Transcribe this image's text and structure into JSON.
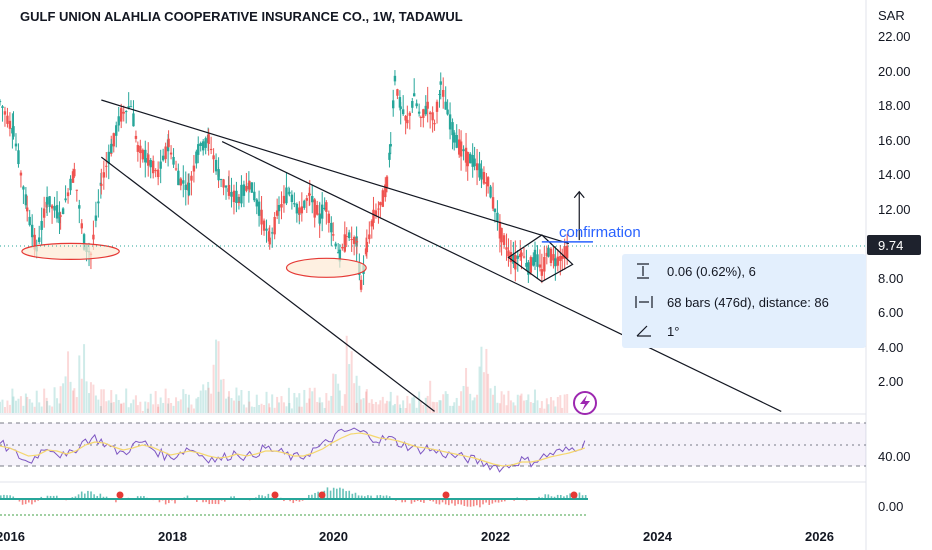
{
  "header": {
    "title": "GULF UNION ALAHLIA COOPERATIVE INSURANCE CO., 1W, TADAWUL",
    "currency": "SAR"
  },
  "price_axis": {
    "ticks": [
      "22.00",
      "20.00",
      "18.00",
      "16.00",
      "14.00",
      "12.00",
      "8.00",
      "6.00",
      "4.00",
      "2.00"
    ],
    "last_price": "9.74"
  },
  "rsi_axis": {
    "ticks": [
      "40.00"
    ]
  },
  "macd_axis": {
    "ticks": [
      "0.00"
    ]
  },
  "time_axis": {
    "ticks": [
      "2016",
      "2018",
      "2020",
      "2022",
      "2024",
      "2026"
    ]
  },
  "annotation": {
    "confirmation": "confirmation"
  },
  "measure": {
    "price_range": "0.06 (0.62%), 6",
    "bars_range": "68 bars (476d), distance: 86",
    "angle": "1°"
  },
  "colors": {
    "up": "#26a69a",
    "down": "#ef5350",
    "rsi": "#7e57c2",
    "rsi_ma": "#f5d76e",
    "accent": "#2962ff",
    "last_price_bg": "#1e222d"
  },
  "chart_data": [
    {
      "type": "candlestick",
      "title": "",
      "ylim": [
        0,
        23
      ],
      "x_range": [
        "2015-10-01",
        "2026-10-01"
      ],
      "close_series": [
        [
          "2015-10-01",
          18.2
        ],
        [
          "2015-12-01",
          16.5
        ],
        [
          "2016-02-01",
          12.0
        ],
        [
          "2016-03-15",
          9.6
        ],
        [
          "2016-05-01",
          12.5
        ],
        [
          "2016-07-01",
          11.5
        ],
        [
          "2016-09-01",
          14.2
        ],
        [
          "2016-10-15",
          10.0
        ],
        [
          "2016-11-15",
          9.4
        ],
        [
          "2017-01-01",
          13.5
        ],
        [
          "2017-02-15",
          15.5
        ],
        [
          "2017-04-01",
          17.5
        ],
        [
          "2017-05-15",
          18.0
        ],
        [
          "2017-06-15",
          15.5
        ],
        [
          "2017-08-01",
          14.8
        ],
        [
          "2017-09-15",
          14.0
        ],
        [
          "2017-11-01",
          15.8
        ],
        [
          "2017-12-15",
          13.8
        ],
        [
          "2018-02-01",
          13.2
        ],
        [
          "2018-03-15",
          15.5
        ],
        [
          "2018-05-01",
          16.0
        ],
        [
          "2018-06-15",
          14.0
        ],
        [
          "2018-08-01",
          13.0
        ],
        [
          "2018-09-15",
          12.5
        ],
        [
          "2018-11-01",
          13.5
        ],
        [
          "2018-12-15",
          12.0
        ],
        [
          "2019-02-01",
          10.2
        ],
        [
          "2019-03-15",
          12.0
        ],
        [
          "2019-05-01",
          13.0
        ],
        [
          "2019-06-15",
          11.8
        ],
        [
          "2019-08-01",
          12.8
        ],
        [
          "2019-09-15",
          11.5
        ],
        [
          "2019-10-15",
          12.2
        ],
        [
          "2019-11-15",
          10.5
        ],
        [
          "2019-12-15",
          9.2
        ],
        [
          "2020-01-15",
          10.5
        ],
        [
          "2020-03-01",
          10.0
        ],
        [
          "2020-03-20",
          7.6
        ],
        [
          "2020-04-15",
          9.8
        ],
        [
          "2020-05-15",
          11.6
        ],
        [
          "2020-06-15",
          12.2
        ],
        [
          "2020-07-15",
          13.5
        ],
        [
          "2020-08-01",
          15.8
        ],
        [
          "2020-08-20",
          19.6
        ],
        [
          "2020-09-15",
          17.8
        ],
        [
          "2020-10-15",
          17.0
        ],
        [
          "2020-11-15",
          18.5
        ],
        [
          "2020-12-15",
          17.2
        ],
        [
          "2021-01-15",
          18.0
        ],
        [
          "2021-02-15",
          17.0
        ],
        [
          "2021-03-15",
          19.2
        ],
        [
          "2021-04-15",
          17.5
        ],
        [
          "2021-05-15",
          16.2
        ],
        [
          "2021-06-15",
          15.5
        ],
        [
          "2021-07-15",
          15.0
        ],
        [
          "2021-08-15",
          14.6
        ],
        [
          "2021-09-15",
          14.0
        ],
        [
          "2021-10-15",
          13.5
        ],
        [
          "2021-11-15",
          12.0
        ],
        [
          "2021-12-15",
          10.5
        ],
        [
          "2022-01-15",
          9.5
        ],
        [
          "2022-02-15",
          9.0
        ],
        [
          "2022-03-15",
          9.5
        ],
        [
          "2022-04-15",
          8.6
        ],
        [
          "2022-05-15",
          9.2
        ],
        [
          "2022-06-15",
          8.4
        ],
        [
          "2022-07-15",
          9.6
        ],
        [
          "2022-08-15",
          9.0
        ],
        [
          "2022-09-15",
          9.3
        ],
        [
          "2022-10-15",
          9.74
        ]
      ],
      "lines": [
        {
          "from": [
            "2017-01-01",
            18.3
          ],
          "to": [
            "2022-10-15",
            10.0
          ]
        },
        {
          "from": [
            "2017-01-01",
            15.0
          ],
          "to": [
            "2021-02-15",
            0.3
          ]
        },
        {
          "from": [
            "2018-07-01",
            15.9
          ],
          "to": [
            "2025-06-01",
            0.3
          ]
        },
        {
          "from": [
            "2022-01-15",
            9.74
          ],
          "to": [
            "2022-10-15",
            9.74
          ]
        }
      ],
      "ellipses": [
        {
          "center": [
            "2016-08-15",
            9.55
          ],
          "rx_days": 220,
          "ry": 0.45
        },
        {
          "center": [
            "2019-10-15",
            8.6
          ],
          "rx_days": 180,
          "ry": 0.55
        }
      ],
      "diamond": [
        [
          "2022-01-15",
          9.2
        ],
        [
          "2022-06-15",
          10.5
        ],
        [
          "2022-11-01",
          8.8
        ],
        [
          "2022-06-15",
          7.8
        ]
      ],
      "confirmation_line": {
        "from": [
          "2022-06-15",
          10.1
        ],
        "to": [
          "2023-02-01",
          10.1
        ]
      },
      "arrow": {
        "from": [
          "2022-12-01",
          10.2
        ],
        "to": [
          "2022-12-01",
          13.0
        ]
      }
    },
    {
      "type": "bar",
      "title": "Volume",
      "note": "relative volume bars beneath price panel",
      "values": [
        2,
        3,
        1,
        4,
        2,
        5,
        3,
        2,
        6,
        3,
        2,
        4,
        3,
        5,
        2,
        3,
        4,
        2,
        3,
        5,
        6,
        4,
        3,
        2,
        4,
        3,
        2,
        5,
        6,
        8,
        10,
        7,
        5,
        4,
        3,
        9,
        12,
        14,
        10,
        8,
        6,
        5,
        7,
        4,
        3,
        5,
        4,
        3,
        6,
        4,
        3,
        2,
        4,
        5,
        3,
        2,
        3,
        4,
        2,
        3,
        5,
        3
      ]
    },
    {
      "type": "line",
      "title": "RSI",
      "ylim": [
        20,
        80
      ],
      "series": [
        {
          "values": [
            55,
            48,
            42,
            35,
            44,
            52,
            46,
            40,
            50,
            58,
            60,
            55,
            48,
            45,
            52,
            56,
            50,
            44,
            40,
            46,
            50,
            44,
            40,
            38,
            42,
            46,
            40,
            45,
            50,
            47,
            44,
            40,
            42,
            48,
            52,
            60,
            65,
            68,
            66,
            62,
            58,
            60,
            55,
            52,
            48,
            50,
            46,
            44,
            42,
            40,
            38,
            35,
            32,
            30,
            34,
            38,
            36,
            40,
            44,
            46,
            48,
            52,
            55
          ]
        },
        {
          "values": [
            52,
            50,
            46,
            42,
            43,
            48,
            47,
            44,
            47,
            53,
            56,
            55,
            51,
            48,
            50,
            53,
            51,
            47,
            43,
            45,
            47,
            45,
            42,
            40,
            41,
            44,
            42,
            44,
            47,
            47,
            45,
            42,
            42,
            45,
            49,
            55,
            60,
            64,
            65,
            63,
            60,
            59,
            57,
            54,
            51,
            50,
            48,
            46,
            44,
            42,
            40,
            37,
            34,
            32,
            33,
            36,
            36,
            38,
            41,
            43,
            45,
            48,
            51
          ]
        }
      ]
    },
    {
      "type": "bar",
      "title": "MACD",
      "values": [
        0.4,
        0.2,
        -0.2,
        -0.4,
        -0.1,
        0.3,
        0.1,
        -0.2,
        0.2,
        0.5,
        0.4,
        0.2,
        -0.1,
        -0.2,
        0.1,
        0.3,
        0.1,
        -0.2,
        -0.3,
        -0.1,
        0.1,
        -0.1,
        -0.3,
        -0.3,
        -0.1,
        0.1,
        -0.1,
        0.1,
        0.3,
        0.2,
        0.0,
        -0.2,
        -0.1,
        0.2,
        0.4,
        0.7,
        0.8,
        0.6,
        0.4,
        0.2,
        0.1,
        0.2,
        0.0,
        -0.1,
        -0.2,
        -0.1,
        -0.2,
        -0.3,
        -0.3,
        -0.4,
        -0.5,
        -0.5,
        -0.4,
        -0.3,
        -0.1,
        0.0,
        -0.1,
        0.1,
        0.2,
        0.3,
        0.3,
        0.4,
        0.4
      ]
    }
  ]
}
